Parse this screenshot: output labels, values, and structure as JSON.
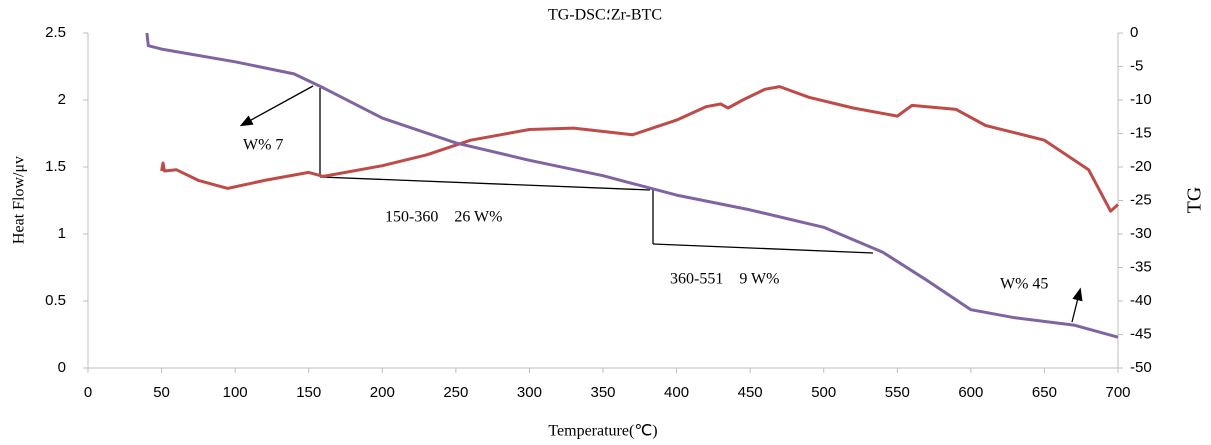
{
  "chart_data": {
    "type": "line",
    "title": "TG-DSC؛Zr-BTC",
    "xlabel": "Temperature(℃)",
    "ylabel": "Heat Flow/μv",
    "y2label": "TG",
    "annotations": [
      "W% 7",
      "150-360    26 W%",
      "360-551    9 W%",
      "W% 45"
    ],
    "xlim": [
      0,
      700
    ],
    "xticks": [
      0,
      50,
      100,
      150,
      200,
      250,
      300,
      350,
      400,
      450,
      500,
      550,
      600,
      650,
      700
    ],
    "ylim": [
      0,
      2.5
    ],
    "yticks": [
      0,
      0.5,
      1,
      1.5,
      2,
      2.5
    ],
    "y2lim": [
      -50,
      0
    ],
    "y2ticks": [
      0,
      -5,
      -10,
      -15,
      -20,
      -25,
      -30,
      -35,
      -40,
      -45,
      -50
    ],
    "grid": false,
    "series": [
      {
        "color": "#be4b48",
        "x": [
          50,
          51,
          52,
          60,
          75,
          95,
          120,
          150,
          160,
          200,
          230,
          260,
          300,
          330,
          370,
          400,
          420,
          430,
          435,
          445,
          460,
          470,
          490,
          520,
          550,
          560,
          590,
          610,
          650,
          680,
          695,
          700
        ],
        "values": [
          1.47,
          1.53,
          1.47,
          1.48,
          1.4,
          1.34,
          1.4,
          1.46,
          1.43,
          1.51,
          1.59,
          1.7,
          1.78,
          1.79,
          1.74,
          1.85,
          1.95,
          1.97,
          1.94,
          2.0,
          2.08,
          2.1,
          2.02,
          1.94,
          1.88,
          1.96,
          1.93,
          1.81,
          1.7,
          1.48,
          1.17,
          1.22
        ]
      },
      {
        "color": "#8064a2",
        "axis": "y2",
        "x": [
          40,
          41,
          50,
          100,
          140,
          160,
          200,
          250,
          300,
          350,
          400,
          450,
          500,
          540,
          570,
          600,
          630,
          670,
          700
        ],
        "values": [
          0,
          -1.9,
          -2.4,
          -4.3,
          -6.1,
          -8.2,
          -12.7,
          -16.4,
          -19,
          -21.3,
          -24.2,
          -26.4,
          -29,
          -32.7,
          -36.9,
          -41.3,
          -42.5,
          -43.6,
          -45.4
        ]
      }
    ]
  }
}
